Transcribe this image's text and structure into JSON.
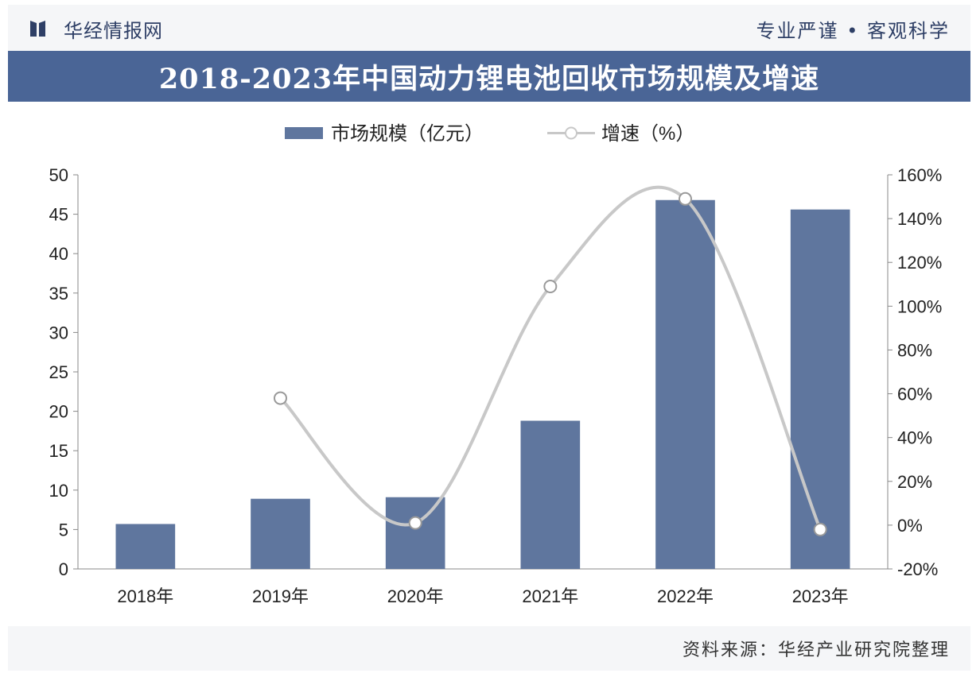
{
  "header": {
    "brand": "华经情报网",
    "slogan_left": "专业严谨",
    "slogan_right": "客观科学",
    "bullet": "•"
  },
  "footer": {
    "source": "资料来源：华经产业研究院整理"
  },
  "colors": {
    "bar": "#5f769e",
    "line": "#c8c8c8",
    "title_band": "#4a6596",
    "brand_text": "#2e3f66"
  },
  "chart_data": {
    "type": "bar",
    "title": "2018-2023年中国动力锂电池回收市场规模及增速",
    "categories": [
      "2018年",
      "2019年",
      "2020年",
      "2021年",
      "2022年",
      "2023年"
    ],
    "series": [
      {
        "name": "市场规模（亿元）",
        "type": "bar",
        "axis": "left",
        "values": [
          5.7,
          8.9,
          9.1,
          18.8,
          46.8,
          45.6
        ]
      },
      {
        "name": "增速（%）",
        "type": "line",
        "smooth": true,
        "axis": "right",
        "values": [
          null,
          58,
          1,
          109,
          149,
          -2
        ]
      }
    ],
    "y_left": {
      "min": 0,
      "max": 50,
      "step": 5,
      "ticks": [
        "0",
        "5",
        "10",
        "15",
        "20",
        "25",
        "30",
        "35",
        "40",
        "45",
        "50"
      ]
    },
    "y_right": {
      "min": -20,
      "max": 160,
      "step": 20,
      "ticks": [
        "-20%",
        "0%",
        "20%",
        "40%",
        "60%",
        "80%",
        "100%",
        "120%",
        "140%",
        "160%"
      ]
    },
    "legend_position": "top-center",
    "grid": false
  }
}
